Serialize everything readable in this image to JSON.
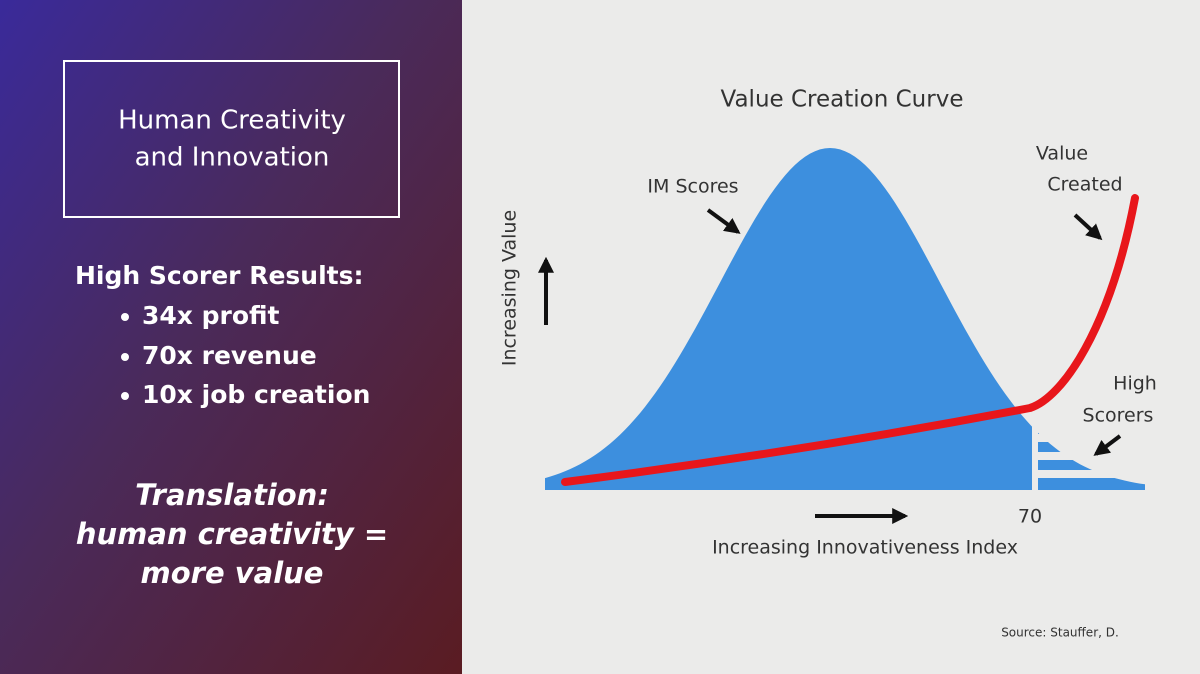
{
  "left_panel": {
    "title_lines": [
      "Human Creativity",
      "and Innovation"
    ],
    "results_heading": "High Scorer Results:",
    "results": [
      "34x profit",
      "70x revenue",
      "10x job creation"
    ],
    "translation_lines": [
      "Translation:",
      "human creativity =",
      "more value"
    ]
  },
  "diagram": {
    "title": "Value Creation Curve",
    "im_scores_label": "IM Scores",
    "value_created_lines": [
      "Value",
      "Created"
    ],
    "high_scorers_lines": [
      "High",
      "Scorers"
    ],
    "y_axis_label": "Increasing Value",
    "x_axis_label": "Increasing Innovativeness Index",
    "threshold_label": "70",
    "source": "Source: Stauffer, D."
  }
}
